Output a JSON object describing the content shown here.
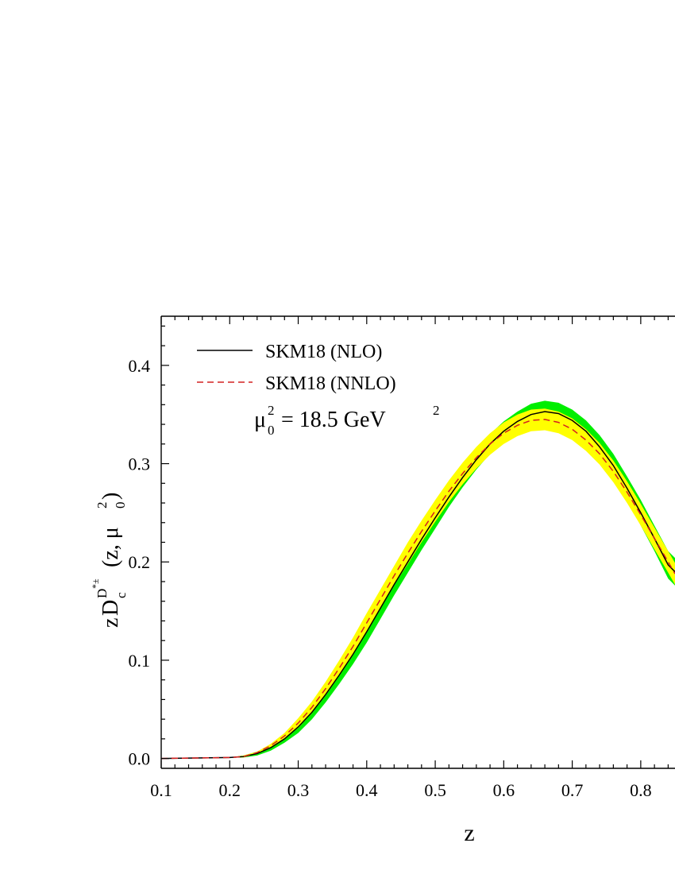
{
  "chart_data": {
    "type": "line",
    "xlabel": "z",
    "ylabel_parts": {
      "z": "z",
      "D": "D",
      "sub": "c",
      "sup_base": "D",
      "sup_star": "*±",
      "open": "(z, μ",
      "mu_sup": "2",
      "mu_sub": "0",
      "close": ")"
    },
    "annotation": {
      "mu": "μ",
      "sup": "2",
      "sub": "0",
      "text": "= 18.5 GeV",
      "unit_sup": "2"
    },
    "xlim": [
      0.1,
      0.85
    ],
    "ylim": [
      -0.01,
      0.45
    ],
    "xticks": [
      0.1,
      0.2,
      0.3,
      0.4,
      0.5,
      0.6,
      0.7,
      0.8
    ],
    "xtick_labels": [
      "0.1",
      "0.2",
      "0.3",
      "0.4",
      "0.5",
      "0.6",
      "0.7",
      "0.8"
    ],
    "yticks": [
      0.0,
      0.1,
      0.2,
      0.3,
      0.4
    ],
    "ytick_labels": [
      "0.0",
      "0.1",
      "0.2",
      "0.3",
      "0.4"
    ],
    "legend_position": "top-left",
    "series": [
      {
        "name": "SKM18 (NLO)",
        "style": "solid",
        "color": "#000000",
        "band_color": "#00ee00",
        "x": [
          0.1,
          0.2,
          0.22,
          0.24,
          0.26,
          0.28,
          0.3,
          0.32,
          0.34,
          0.36,
          0.38,
          0.4,
          0.42,
          0.44,
          0.46,
          0.48,
          0.5,
          0.52,
          0.54,
          0.56,
          0.58,
          0.6,
          0.62,
          0.64,
          0.66,
          0.68,
          0.7,
          0.72,
          0.74,
          0.76,
          0.78,
          0.8,
          0.82,
          0.84,
          0.85
        ],
        "y": [
          0.0,
          0.001,
          0.002,
          0.005,
          0.011,
          0.02,
          0.032,
          0.047,
          0.065,
          0.085,
          0.106,
          0.129,
          0.153,
          0.177,
          0.2,
          0.223,
          0.245,
          0.266,
          0.286,
          0.304,
          0.32,
          0.333,
          0.343,
          0.35,
          0.353,
          0.351,
          0.344,
          0.333,
          0.317,
          0.298,
          0.275,
          0.25,
          0.224,
          0.197,
          0.19
        ],
        "band_half_width": [
          0.0,
          0.0,
          0.001,
          0.002,
          0.003,
          0.004,
          0.006,
          0.007,
          0.008,
          0.009,
          0.01,
          0.011,
          0.011,
          0.011,
          0.011,
          0.011,
          0.011,
          0.01,
          0.01,
          0.01,
          0.01,
          0.01,
          0.01,
          0.011,
          0.011,
          0.011,
          0.011,
          0.011,
          0.012,
          0.012,
          0.012,
          0.013,
          0.013,
          0.014,
          0.014
        ]
      },
      {
        "name": "SKM18 (NNLO)",
        "style": "dashed",
        "color": "#d42020",
        "band_color": "#ffff00",
        "x": [
          0.1,
          0.2,
          0.22,
          0.24,
          0.26,
          0.28,
          0.3,
          0.32,
          0.34,
          0.36,
          0.38,
          0.4,
          0.42,
          0.44,
          0.46,
          0.48,
          0.5,
          0.52,
          0.54,
          0.56,
          0.58,
          0.6,
          0.62,
          0.64,
          0.66,
          0.68,
          0.7,
          0.72,
          0.74,
          0.76,
          0.78,
          0.8,
          0.82,
          0.84,
          0.85
        ],
        "y": [
          0.0,
          0.001,
          0.002,
          0.006,
          0.013,
          0.023,
          0.036,
          0.052,
          0.071,
          0.092,
          0.114,
          0.138,
          0.162,
          0.186,
          0.209,
          0.231,
          0.252,
          0.272,
          0.29,
          0.306,
          0.32,
          0.331,
          0.339,
          0.344,
          0.345,
          0.342,
          0.335,
          0.324,
          0.31,
          0.292,
          0.271,
          0.248,
          0.224,
          0.2,
          0.188
        ],
        "band_half_width": [
          0.0,
          0.0,
          0.001,
          0.001,
          0.002,
          0.003,
          0.005,
          0.006,
          0.007,
          0.008,
          0.009,
          0.01,
          0.01,
          0.01,
          0.011,
          0.011,
          0.011,
          0.011,
          0.011,
          0.011,
          0.011,
          0.011,
          0.011,
          0.011,
          0.011,
          0.011,
          0.011,
          0.011,
          0.011,
          0.011,
          0.011,
          0.011,
          0.011,
          0.011,
          0.011
        ]
      }
    ]
  }
}
